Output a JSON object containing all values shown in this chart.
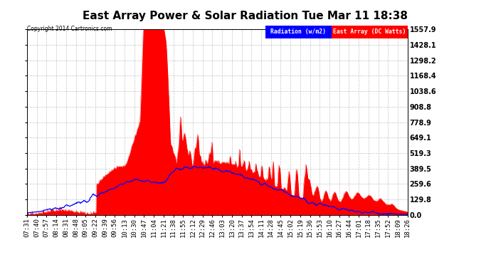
{
  "title": "East Array Power & Solar Radiation Tue Mar 11 18:38",
  "copyright": "Copyright 2014 Cartronics.com",
  "legend_radiation": "Radiation (w/m2)",
  "legend_east": "East Array (DC Watts)",
  "y_ticks": [
    0.0,
    129.8,
    259.6,
    389.5,
    519.3,
    649.1,
    778.9,
    908.8,
    1038.6,
    1168.4,
    1298.2,
    1428.1,
    1557.9
  ],
  "x_labels": [
    "07:31",
    "07:40",
    "07:57",
    "08:14",
    "08:31",
    "08:48",
    "09:05",
    "09:22",
    "09:39",
    "09:56",
    "10:13",
    "10:30",
    "10:47",
    "11:04",
    "11:21",
    "11:38",
    "11:55",
    "12:12",
    "12:29",
    "12:46",
    "13:03",
    "13:20",
    "13:37",
    "13:54",
    "14:11",
    "14:28",
    "14:45",
    "15:02",
    "15:19",
    "15:36",
    "15:53",
    "16:10",
    "16:27",
    "16:44",
    "17:01",
    "17:18",
    "17:35",
    "17:52",
    "18:09",
    "18:26"
  ],
  "background_color": "#ffffff",
  "plot_bg_color": "#ffffff",
  "grid_color": "#aaaaaa",
  "fill_color_east": "#ff0000",
  "line_color_radiation": "#0000ff",
  "y_max": 1557.9,
  "y_min": 0.0,
  "title_fontsize": 11,
  "tick_fontsize": 6.5
}
